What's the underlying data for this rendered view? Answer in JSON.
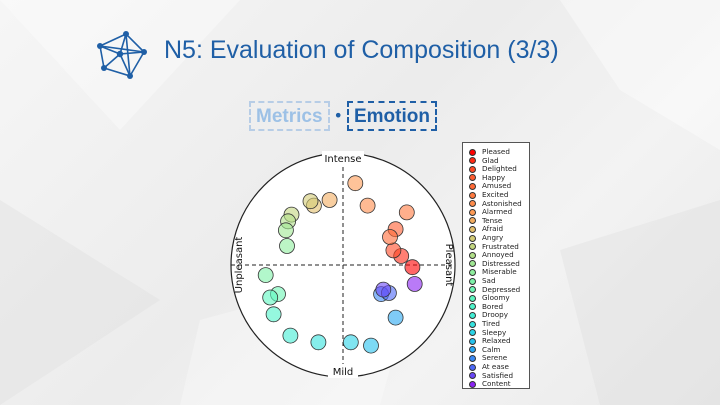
{
  "header": {
    "title": "N5: Evaluation of Composition (3/3)",
    "logo_icon": "network-graph-icon",
    "accent_color": "#1f5fa6"
  },
  "tabs": [
    {
      "label": "Metrics",
      "active": false
    },
    {
      "label": "Emotion",
      "active": true
    }
  ],
  "tab_separator": "•",
  "chart_data": {
    "type": "scatter",
    "description_axes": {
      "top": "Intense",
      "bottom": "Mild",
      "left": "Unpleasant",
      "right": "Pleasant"
    },
    "xlim": [
      -1,
      1
    ],
    "ylim": [
      -1,
      1
    ],
    "grid": false,
    "crosshair": "dashed",
    "legend_position": "right",
    "points": [
      {
        "name": "Pleased",
        "x": 0.62,
        "y": -0.02,
        "color": "#ff0000"
      },
      {
        "name": "Glad",
        "x": 0.52,
        "y": 0.08,
        "color": "#ff2a15"
      },
      {
        "name": "Delighted",
        "x": 0.45,
        "y": 0.13,
        "color": "#ff4a26"
      },
      {
        "name": "Happy",
        "x": 0.47,
        "y": 0.32,
        "color": "#ff5d30"
      },
      {
        "name": "Amused",
        "x": 0.42,
        "y": 0.25,
        "color": "#ff6a37"
      },
      {
        "name": "Excited",
        "x": 0.57,
        "y": 0.47,
        "color": "#ff7a40"
      },
      {
        "name": "Astonished",
        "x": 0.22,
        "y": 0.53,
        "color": "#ff8c4b"
      },
      {
        "name": "Alarmed",
        "x": 0.11,
        "y": 0.73,
        "color": "#ff9b55"
      },
      {
        "name": "Tense",
        "x": -0.12,
        "y": 0.58,
        "color": "#f3ad60"
      },
      {
        "name": "Afraid",
        "x": -0.26,
        "y": 0.53,
        "color": "#e3bf6c"
      },
      {
        "name": "Angry",
        "x": -0.29,
        "y": 0.57,
        "color": "#d3cb75"
      },
      {
        "name": "Frustrated",
        "x": -0.46,
        "y": 0.45,
        "color": "#c3d67f"
      },
      {
        "name": "Annoyed",
        "x": -0.49,
        "y": 0.39,
        "color": "#b1df88"
      },
      {
        "name": "Distressed",
        "x": -0.51,
        "y": 0.31,
        "color": "#a0e793"
      },
      {
        "name": "Miserable",
        "x": -0.5,
        "y": 0.17,
        "color": "#8fee9e"
      },
      {
        "name": "Sad",
        "x": -0.69,
        "y": -0.09,
        "color": "#7ef2a9"
      },
      {
        "name": "Depressed",
        "x": -0.58,
        "y": -0.26,
        "color": "#6df5b4"
      },
      {
        "name": "Gloomy",
        "x": -0.65,
        "y": -0.29,
        "color": "#5bf6bf"
      },
      {
        "name": "Bored",
        "x": -0.62,
        "y": -0.44,
        "color": "#4ef3ca"
      },
      {
        "name": "Droopy",
        "x": -0.47,
        "y": -0.63,
        "color": "#41edd4"
      },
      {
        "name": "Tired",
        "x": -0.22,
        "y": -0.69,
        "color": "#36e2de"
      },
      {
        "name": "Sleepy",
        "x": 0.07,
        "y": -0.69,
        "color": "#2bd4e7"
      },
      {
        "name": "Relaxed",
        "x": 0.25,
        "y": -0.72,
        "color": "#26c2ee"
      },
      {
        "name": "Calm",
        "x": 0.47,
        "y": -0.47,
        "color": "#2aa8f2"
      },
      {
        "name": "Serene",
        "x": 0.34,
        "y": -0.26,
        "color": "#3a89f5"
      },
      {
        "name": "At ease",
        "x": 0.41,
        "y": -0.25,
        "color": "#4c68f7"
      },
      {
        "name": "Satisfied",
        "x": 0.36,
        "y": -0.22,
        "color": "#6a48f7"
      },
      {
        "name": "Content",
        "x": 0.64,
        "y": -0.17,
        "color": "#8a22f2"
      }
    ]
  }
}
